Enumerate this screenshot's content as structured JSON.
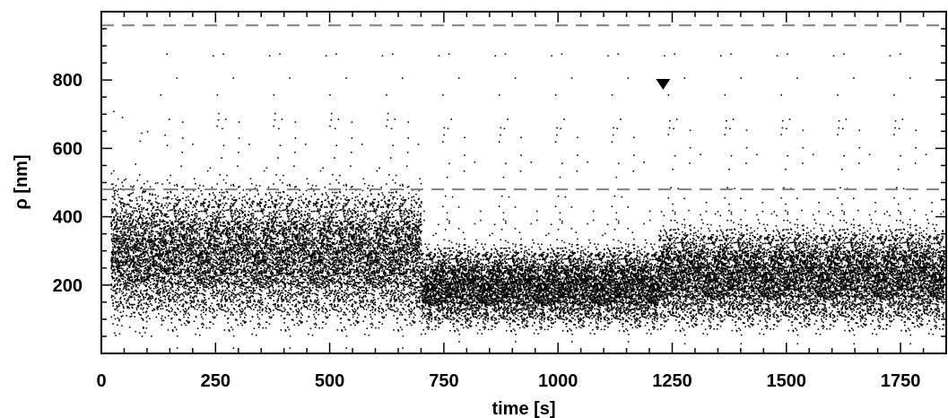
{
  "chart_data": {
    "type": "scatter",
    "title": "",
    "xlabel": "time [s]",
    "ylabel": "ρ  [nm]",
    "xlim": [
      0,
      1850
    ],
    "ylim": [
      0,
      1000
    ],
    "x_ticks": [
      0,
      250,
      500,
      750,
      1000,
      1250,
      1500,
      1750
    ],
    "x_tick_labels": [
      "0",
      "250",
      "500",
      "750",
      "1000",
      "1250",
      "1500",
      "1750"
    ],
    "y_ticks": [
      200,
      400,
      600,
      800
    ],
    "y_tick_labels": [
      "200",
      "400",
      "600",
      "800"
    ],
    "x_minor_step": 50,
    "y_minor_step": 50,
    "grid": false,
    "marker_color": "#000000",
    "reference_lines": [
      {
        "y": 960,
        "style": "dashed",
        "color": "#808080"
      },
      {
        "y": 480,
        "style": "dashed",
        "color": "#808080"
      }
    ],
    "annotation_marker": {
      "shape": "triangle-down",
      "x": 1230,
      "y": 790,
      "color": "#000000"
    },
    "series": [
      {
        "data_range_x": [
          20,
          1845
        ],
        "segments": [
          {
            "x_start": 20,
            "x_end": 700,
            "median": 290,
            "spread": 150,
            "spike_top": 720
          },
          {
            "x_start": 700,
            "x_end": 1220,
            "median": 200,
            "spread": 90,
            "spike_top": 680
          },
          {
            "x_start": 1220,
            "x_end": 1845,
            "median": 230,
            "spread": 110,
            "spike_top": 700
          }
        ]
      }
    ]
  }
}
